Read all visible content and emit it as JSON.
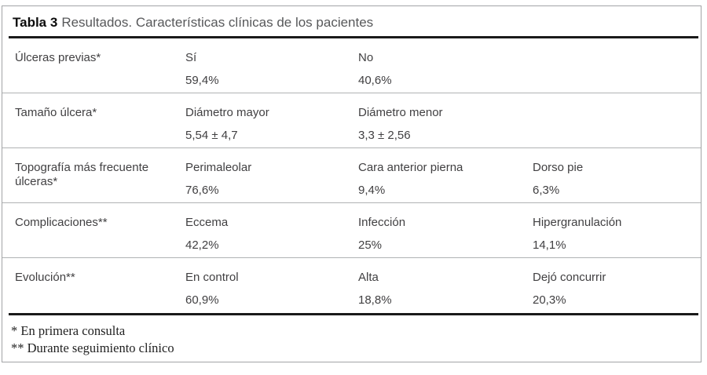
{
  "title": {
    "label": "Tabla 3",
    "text": "Resultados. Características clínicas de los pacientes"
  },
  "colors": {
    "thick_rule": "#1a1a1a",
    "row_divider": "#b0b2b4",
    "outer_border": "#a2a4a6",
    "title_text": "#57585a",
    "body_text": "#414042"
  },
  "table": {
    "rows": [
      {
        "label": "Úlceras previas*",
        "cells": [
          {
            "name": "Sí",
            "value": "59,4%"
          },
          {
            "name": "No",
            "value": "40,6%"
          },
          {
            "name": "",
            "value": ""
          }
        ]
      },
      {
        "label": "Tamaño úlcera*",
        "cells": [
          {
            "name": "Diámetro mayor",
            "value": "5,54 ± 4,7"
          },
          {
            "name": "Diámetro menor",
            "value": "3,3 ± 2,56"
          },
          {
            "name": "",
            "value": ""
          }
        ]
      },
      {
        "label": "Topografía más frecuente úlceras*",
        "cells": [
          {
            "name": "Perimaleolar",
            "value": "76,6%"
          },
          {
            "name": "Cara anterior pierna",
            "value": "9,4%"
          },
          {
            "name": "Dorso pie",
            "value": "6,3%"
          }
        ]
      },
      {
        "label": "Complicaciones**",
        "cells": [
          {
            "name": "Eccema",
            "value": "42,2%"
          },
          {
            "name": "Infección",
            "value": "25%"
          },
          {
            "name": "Hipergranulación",
            "value": "14,1%"
          }
        ]
      },
      {
        "label": "Evolución**",
        "cells": [
          {
            "name": "En control",
            "value": "60,9%"
          },
          {
            "name": "Alta",
            "value": "18,8%"
          },
          {
            "name": "Dejó concurrir",
            "value": "20,3%"
          }
        ]
      }
    ]
  },
  "footnotes": [
    "* En primera consulta",
    "** Durante seguimiento clínico"
  ]
}
